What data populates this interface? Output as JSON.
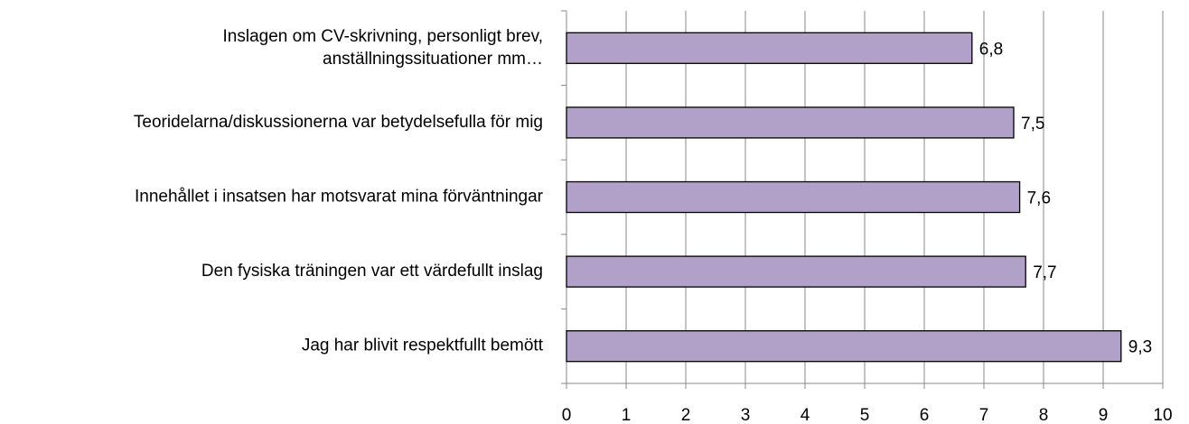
{
  "chart_data": {
    "type": "bar",
    "orientation": "horizontal",
    "categories": [
      "Inslagen om CV-skrivning, personligt brev,\nanställningssituationer mm…",
      "Teoridelarna/diskussionerna var betydelsefulla för mig",
      "Innehållet i insatsen har motsvarat mina förväntningar",
      "Den fysiska träningen var ett värdefullt inslag",
      "Jag har blivit respektfullt bemött"
    ],
    "values": [
      6.8,
      7.5,
      7.6,
      7.7,
      9.3
    ],
    "value_labels": [
      "6,8",
      "7,5",
      "7,6",
      "7,7",
      "9,3"
    ],
    "color": "#b1a0c7",
    "xlim": [
      0,
      10
    ],
    "xticks": [
      0,
      1,
      2,
      3,
      4,
      5,
      6,
      7,
      8,
      9,
      10
    ],
    "grid": true
  }
}
